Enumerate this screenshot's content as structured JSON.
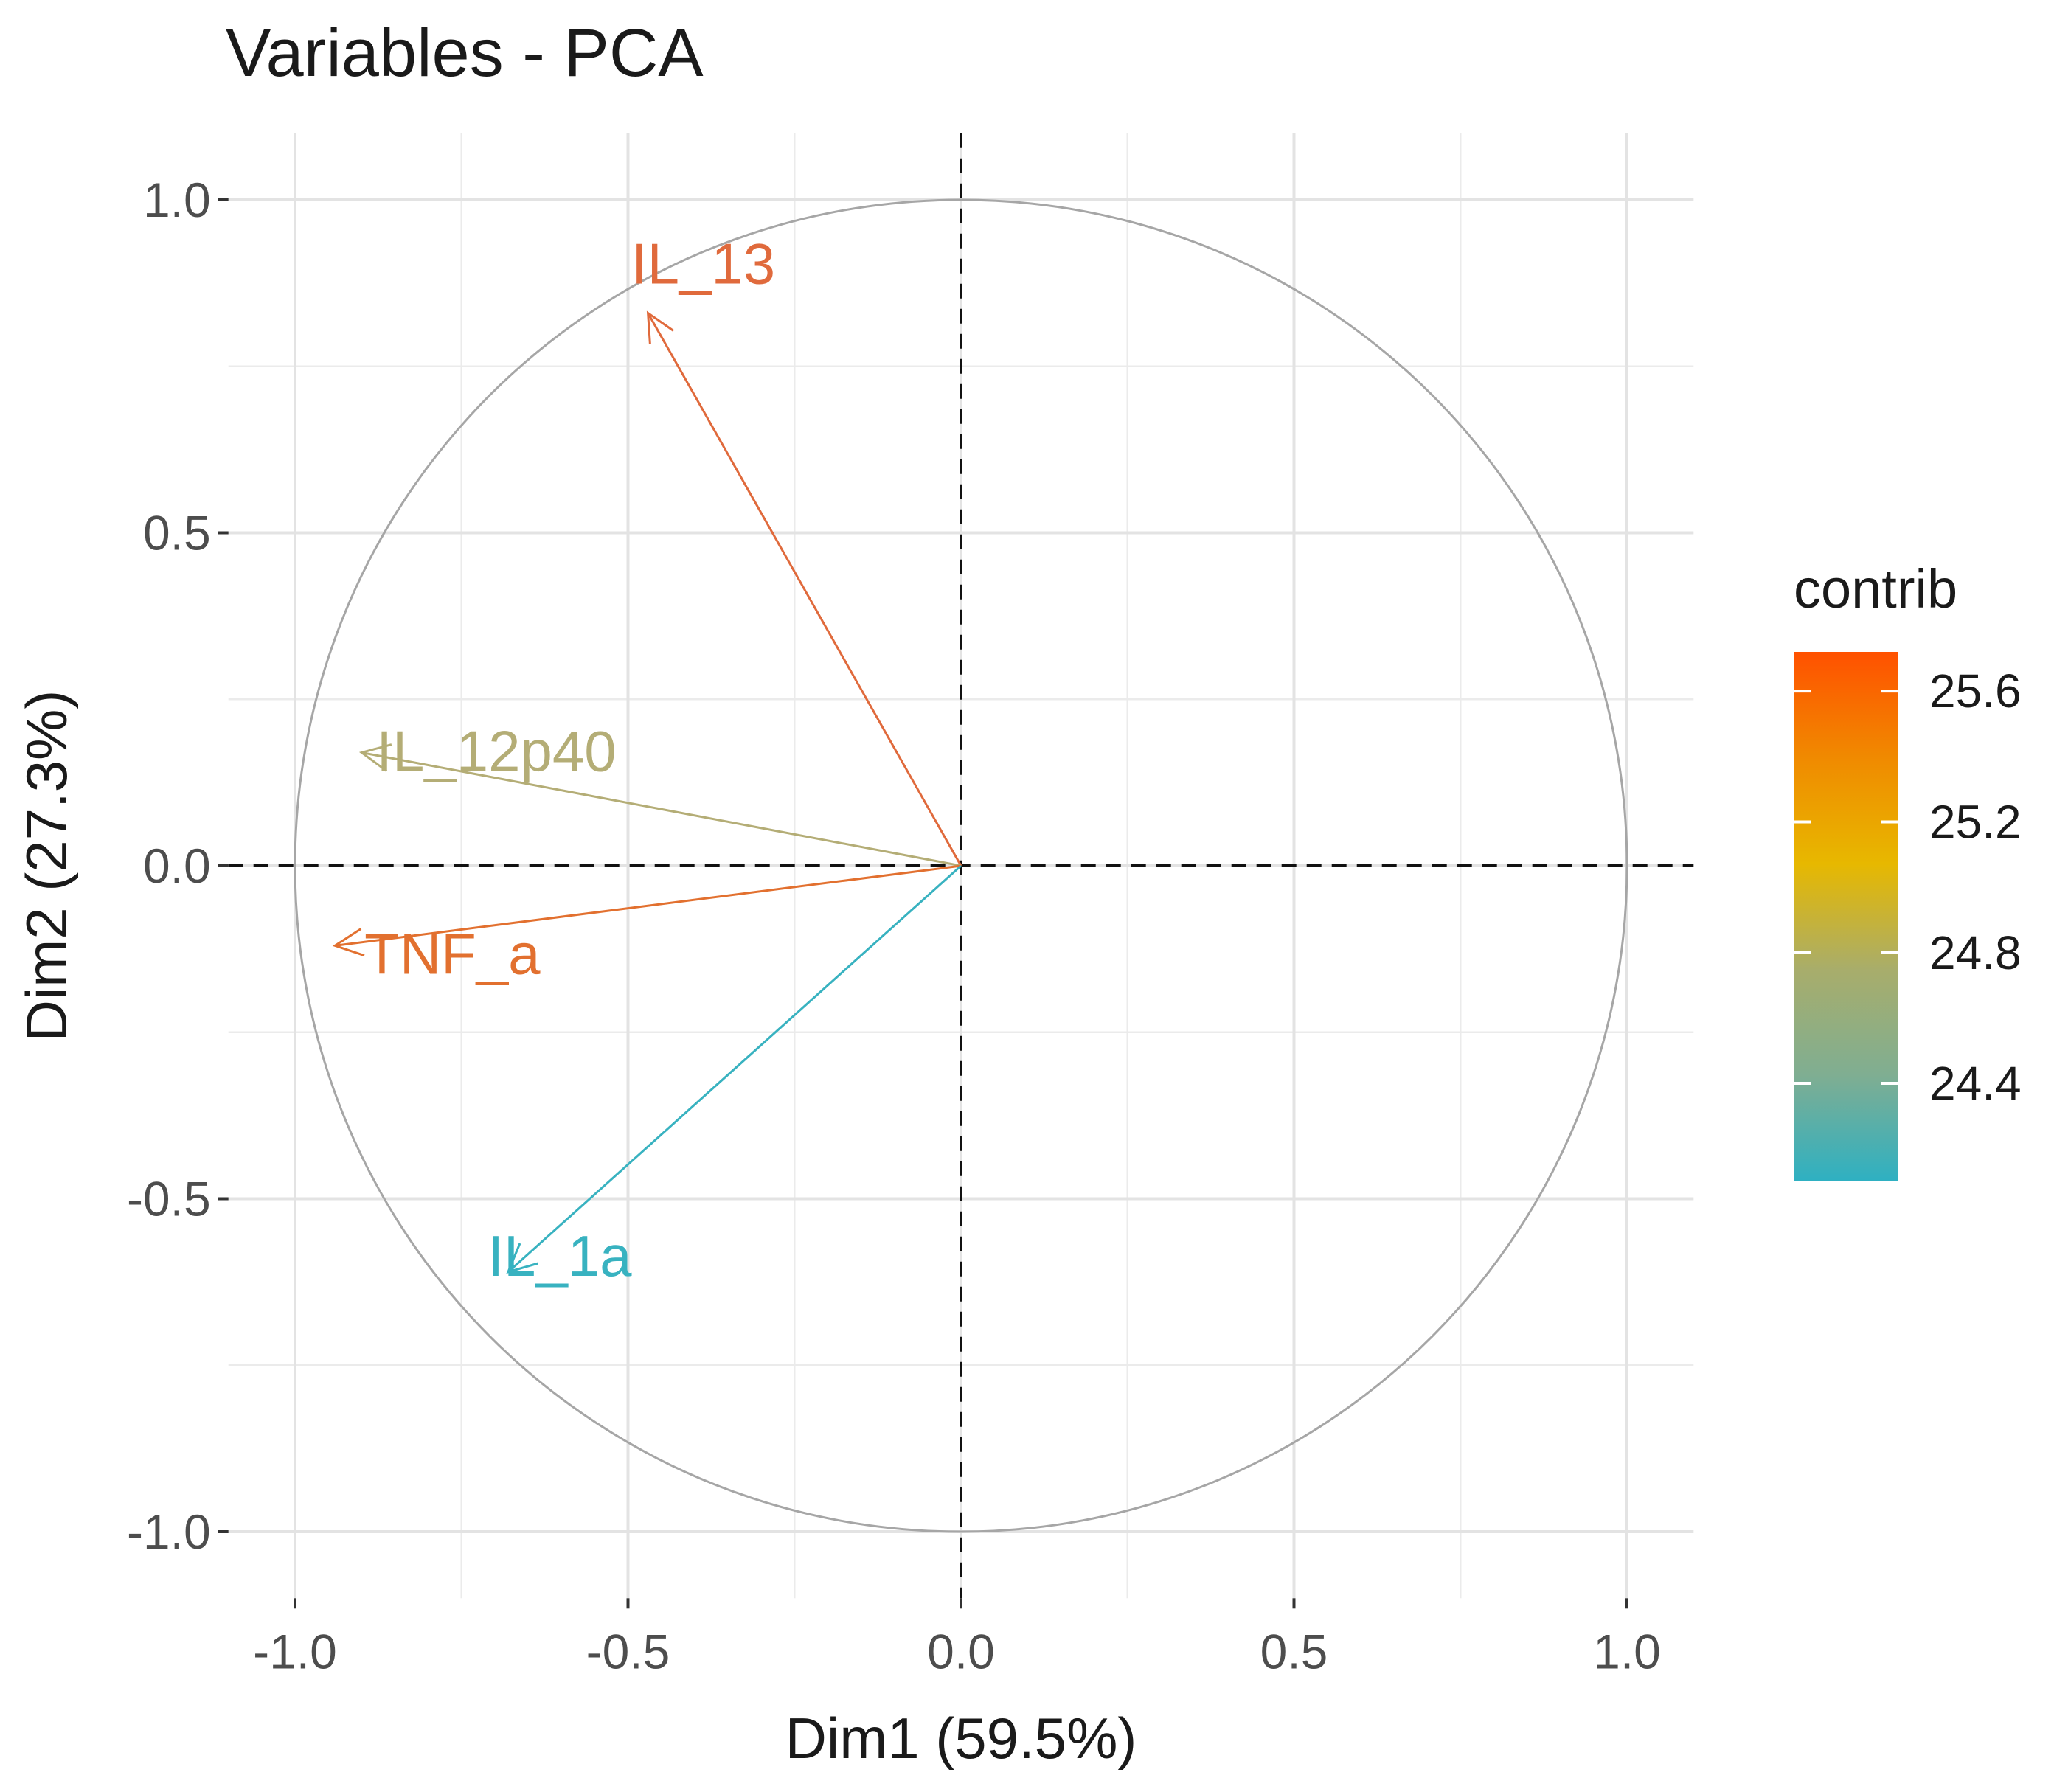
{
  "chart_data": {
    "type": "scatter",
    "subtype": "pca-variable-correlation-circle",
    "title": "Variables - PCA",
    "xlabel": "Dim1 (59.5%)",
    "ylabel": "Dim2 (27.3%)",
    "xlim": [
      -1.1,
      1.1
    ],
    "ylim": [
      -1.1,
      1.1
    ],
    "x_ticks": [
      -1.0,
      -0.5,
      0.0,
      0.5,
      1.0
    ],
    "x_tick_labels": [
      "-1.0",
      "-0.5",
      "0.0",
      "0.5",
      "1.0"
    ],
    "y_ticks": [
      -1.0,
      -0.5,
      0.0,
      0.5,
      1.0
    ],
    "y_tick_labels": [
      "-1.0",
      "-0.5",
      "0.0",
      "0.5",
      "1.0"
    ],
    "grid": true,
    "unit_circle": true,
    "reference_lines": {
      "x": 0,
      "y": 0,
      "style": "dashed"
    },
    "variables": [
      {
        "name": "IL_13",
        "x": -0.47,
        "y": 0.83,
        "contrib": 25.3,
        "color": "#e06a3c"
      },
      {
        "name": "IL_12p40",
        "x": -0.9,
        "y": 0.17,
        "contrib": 24.7,
        "color": "#b4ad76"
      },
      {
        "name": "TNF_a",
        "x": -0.94,
        "y": -0.12,
        "contrib": 25.35,
        "color": "#e2702f"
      },
      {
        "name": "IL_1a",
        "x": -0.68,
        "y": -0.61,
        "contrib": 24.1,
        "color": "#38b2c0"
      }
    ],
    "legend": {
      "title": "contrib",
      "position": "right",
      "min": 24.1,
      "max": 25.72,
      "ticks": [
        25.6,
        25.2,
        24.8,
        24.4
      ],
      "tick_labels": [
        "25.6",
        "25.2",
        "24.8",
        "24.4"
      ],
      "gradient_colors": [
        "#ff5100",
        "#f08a00",
        "#e7b800",
        "#a8ad6b",
        "#7fae92",
        "#2eb0c2"
      ]
    }
  }
}
